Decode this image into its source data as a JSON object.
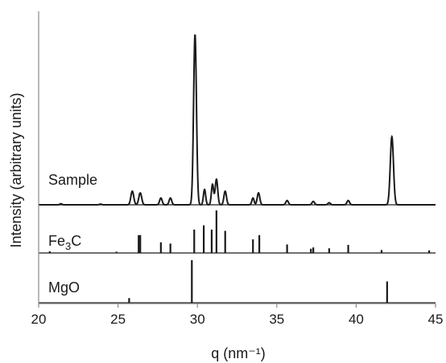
{
  "chart_data": {
    "type": "line",
    "xlabel": "q (nm⁻¹)",
    "ylabel": "Intensity (arbitrary units)",
    "xlim": [
      20,
      45
    ],
    "xticks": [
      "20",
      "25",
      "30",
      "35",
      "40",
      "45"
    ],
    "grid": false,
    "legend": "none",
    "panels": [
      {
        "name": "Sample",
        "kind": "profile",
        "ylim": [
          0,
          100
        ],
        "peaks": [
          {
            "q": 21.4,
            "h": 0.6,
            "w": 0.07
          },
          {
            "q": 23.9,
            "h": 0.4,
            "w": 0.07
          },
          {
            "q": 25.9,
            "h": 8,
            "w": 0.09
          },
          {
            "q": 26.4,
            "h": 7,
            "w": 0.09
          },
          {
            "q": 27.7,
            "h": 4,
            "w": 0.08
          },
          {
            "q": 28.3,
            "h": 4,
            "w": 0.08
          },
          {
            "q": 29.85,
            "h": 100,
            "w": 0.09
          },
          {
            "q": 30.45,
            "h": 9,
            "w": 0.07
          },
          {
            "q": 30.95,
            "h": 12,
            "w": 0.07
          },
          {
            "q": 31.2,
            "h": 15,
            "w": 0.08
          },
          {
            "q": 31.75,
            "h": 8,
            "w": 0.08
          },
          {
            "q": 33.5,
            "h": 4,
            "w": 0.07
          },
          {
            "q": 33.85,
            "h": 7,
            "w": 0.08
          },
          {
            "q": 35.65,
            "h": 2.5,
            "w": 0.08
          },
          {
            "q": 37.3,
            "h": 2,
            "w": 0.08
          },
          {
            "q": 38.3,
            "h": 1.2,
            "w": 0.08
          },
          {
            "q": 39.5,
            "h": 2.5,
            "w": 0.08
          },
          {
            "q": 42.25,
            "h": 40,
            "w": 0.1
          }
        ]
      },
      {
        "name": "Fe3C",
        "label_main": "Fe",
        "label_sub": "3",
        "label_end": "C",
        "kind": "sticks",
        "ylim": [
          0,
          100
        ],
        "sticks": [
          {
            "q": 20.7,
            "h": 4
          },
          {
            "q": 24.9,
            "h": 3
          },
          {
            "q": 26.3,
            "h": 42
          },
          {
            "q": 26.4,
            "h": 42
          },
          {
            "q": 27.7,
            "h": 25
          },
          {
            "q": 28.3,
            "h": 22
          },
          {
            "q": 29.8,
            "h": 55
          },
          {
            "q": 30.4,
            "h": 65
          },
          {
            "q": 30.9,
            "h": 55
          },
          {
            "q": 31.2,
            "h": 100
          },
          {
            "q": 31.75,
            "h": 52
          },
          {
            "q": 33.5,
            "h": 32
          },
          {
            "q": 33.9,
            "h": 42
          },
          {
            "q": 35.65,
            "h": 20
          },
          {
            "q": 37.15,
            "h": 10
          },
          {
            "q": 37.3,
            "h": 13
          },
          {
            "q": 38.3,
            "h": 11
          },
          {
            "q": 39.5,
            "h": 19
          },
          {
            "q": 41.6,
            "h": 7
          },
          {
            "q": 44.6,
            "h": 6
          }
        ]
      },
      {
        "name": "MgO",
        "kind": "sticks",
        "ylim": [
          0,
          100
        ],
        "sticks": [
          {
            "q": 25.7,
            "h": 11
          },
          {
            "q": 29.65,
            "h": 100
          },
          {
            "q": 41.95,
            "h": 50
          }
        ]
      }
    ]
  }
}
